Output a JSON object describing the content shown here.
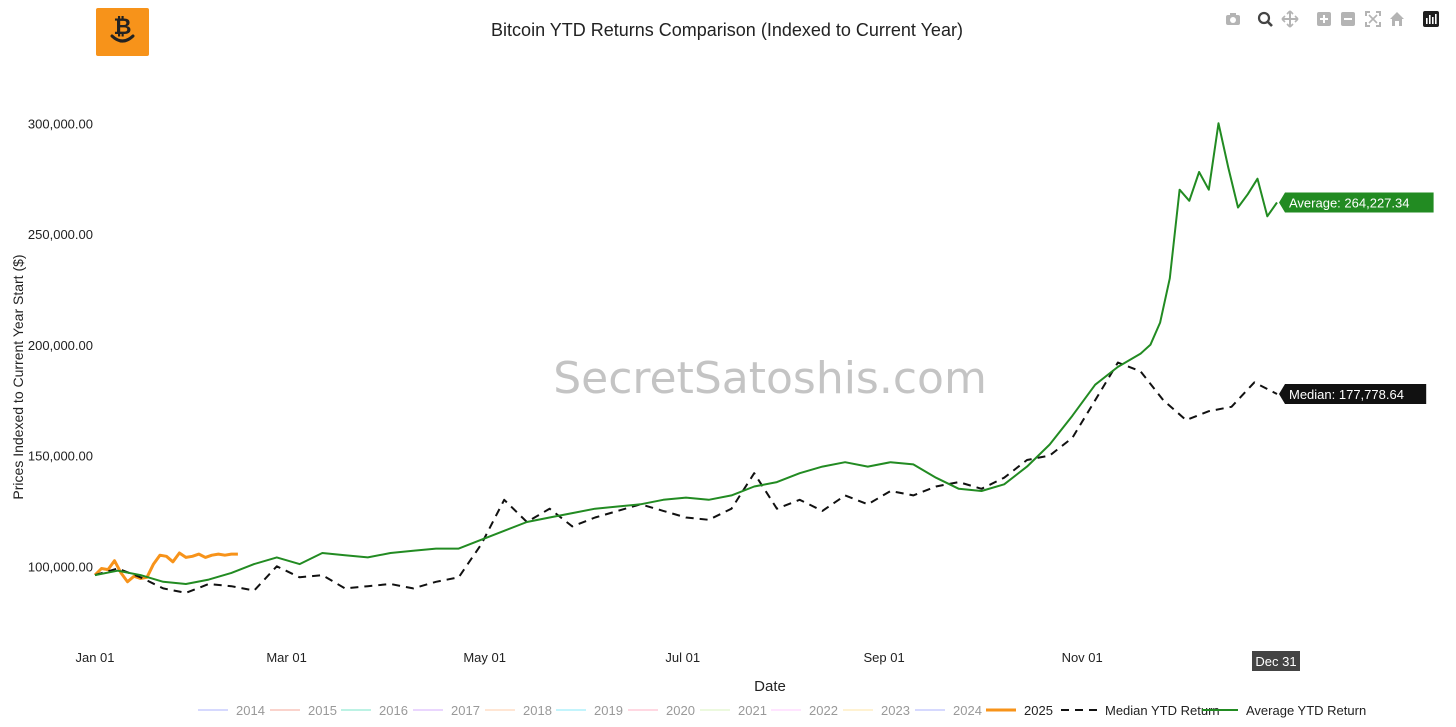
{
  "toolbar": {
    "buttons": [
      {
        "name": "camera-icon",
        "label": "Download plot as a png"
      },
      {
        "name": "zoom-icon",
        "label": "Zoom"
      },
      {
        "name": "pan-icon",
        "label": "Pan"
      },
      {
        "name": "zoom-in-icon",
        "label": "Zoom in"
      },
      {
        "name": "zoom-out-icon",
        "label": "Zoom out"
      },
      {
        "name": "autoscale-icon",
        "label": "Autoscale"
      },
      {
        "name": "home-icon",
        "label": "Reset axes"
      },
      {
        "name": "plotly-logo-icon",
        "label": "Produced with Plotly"
      }
    ]
  },
  "colors": {
    "accent_orange": "#f7931a",
    "average_green": "#228b22",
    "median_black": "#111111",
    "watermark": "#c4c4c4"
  },
  "watermark": "SecretSatoshis.com",
  "chart_data": {
    "type": "line",
    "title": "Bitcoin YTD Returns Comparison (Indexed to Current Year)",
    "xlabel": "Date",
    "ylabel": "Prices Indexed to Current Year Start ($)",
    "xlim": [
      "01-01",
      "12-31"
    ],
    "ylim": [
      78000,
      320000
    ],
    "x_ticks": [
      "Jan 01",
      "Mar 01",
      "May 01",
      "Jul 01",
      "Sep 01",
      "Nov 01"
    ],
    "y_ticks": [
      "100,000.00",
      "150,000.00",
      "200,000.00",
      "250,000.00",
      "300,000.00"
    ],
    "y_tick_values": [
      100000,
      150000,
      200000,
      250000,
      300000
    ],
    "hover_x_label": "Dec 31",
    "grid": false,
    "legend_position": "bottom",
    "legend": [
      "2014",
      "2015",
      "2016",
      "2017",
      "2018",
      "2019",
      "2020",
      "2021",
      "2022",
      "2023",
      "2024",
      "2025",
      "Median YTD Return",
      "Average YTD Return"
    ],
    "series": [
      {
        "name": "2025",
        "color": "#f7931a",
        "style": "solid",
        "x": [
          "01-01",
          "01-03",
          "01-05",
          "01-07",
          "01-09",
          "01-11",
          "01-13",
          "01-15",
          "01-17",
          "01-19",
          "01-21",
          "01-23",
          "01-25",
          "01-27",
          "01-29",
          "01-31",
          "02-02",
          "02-04",
          "02-06",
          "02-08",
          "02-10",
          "02-12",
          "02-14"
        ],
        "y": [
          96000,
          99000,
          98500,
          102500,
          97000,
          93000,
          95500,
          94500,
          95000,
          101000,
          105000,
          104500,
          102000,
          106000,
          104000,
          104500,
          105500,
          104000,
          105000,
          105500,
          105000,
          105500,
          105500
        ]
      },
      {
        "name": "Median YTD Return",
        "color": "#111111",
        "style": "dash",
        "x": [
          "01-01",
          "01-08",
          "01-15",
          "01-22",
          "01-29",
          "02-05",
          "02-12",
          "02-19",
          "02-26",
          "03-05",
          "03-12",
          "03-19",
          "03-26",
          "04-02",
          "04-09",
          "04-16",
          "04-23",
          "04-30",
          "05-07",
          "05-14",
          "05-21",
          "05-28",
          "06-04",
          "06-11",
          "06-18",
          "06-25",
          "07-02",
          "07-09",
          "07-16",
          "07-23",
          "07-30",
          "08-06",
          "08-13",
          "08-20",
          "08-27",
          "09-03",
          "09-10",
          "09-17",
          "09-24",
          "10-01",
          "10-08",
          "10-15",
          "10-22",
          "10-29",
          "11-05",
          "11-12",
          "11-19",
          "11-26",
          "12-03",
          "12-10",
          "12-17",
          "12-24",
          "12-31"
        ],
        "y": [
          96000,
          99000,
          95000,
          90000,
          88000,
          92000,
          91000,
          89000,
          100000,
          95000,
          96000,
          90000,
          91000,
          92000,
          90000,
          93000,
          95000,
          110000,
          130000,
          120000,
          126000,
          118000,
          122000,
          125000,
          128000,
          125000,
          122000,
          121000,
          126000,
          142000,
          126000,
          130000,
          125000,
          132000,
          128000,
          134000,
          132000,
          136000,
          138000,
          135000,
          140000,
          148000,
          150000,
          158000,
          175000,
          192000,
          188000,
          175000,
          166000,
          170000,
          172000,
          183000,
          177778.64
        ]
      },
      {
        "name": "Average YTD Return",
        "color": "#228b22",
        "style": "solid",
        "x": [
          "01-01",
          "01-08",
          "01-15",
          "01-22",
          "01-29",
          "02-05",
          "02-12",
          "02-19",
          "02-26",
          "03-05",
          "03-12",
          "03-19",
          "03-26",
          "04-02",
          "04-09",
          "04-16",
          "04-23",
          "04-30",
          "05-07",
          "05-14",
          "05-21",
          "05-28",
          "06-04",
          "06-11",
          "06-18",
          "06-25",
          "07-02",
          "07-09",
          "07-16",
          "07-23",
          "07-30",
          "08-06",
          "08-13",
          "08-20",
          "08-27",
          "09-03",
          "09-10",
          "09-17",
          "09-24",
          "10-01",
          "10-08",
          "10-15",
          "10-22",
          "10-29",
          "11-05",
          "11-12",
          "11-19",
          "11-22",
          "11-25",
          "11-28",
          "12-01",
          "12-04",
          "12-07",
          "12-10",
          "12-13",
          "12-16",
          "12-19",
          "12-22",
          "12-25",
          "12-28",
          "12-31"
        ],
        "y": [
          96000,
          98000,
          96000,
          93000,
          92000,
          94000,
          97000,
          101000,
          104000,
          101000,
          106000,
          105000,
          104000,
          106000,
          107000,
          108000,
          108000,
          112000,
          116000,
          120000,
          122000,
          124000,
          126000,
          127000,
          128000,
          130000,
          131000,
          130000,
          132000,
          136000,
          138000,
          142000,
          145000,
          147000,
          145000,
          147000,
          146000,
          140000,
          135000,
          134000,
          137000,
          145000,
          155000,
          168000,
          182000,
          190000,
          196000,
          200000,
          210000,
          230000,
          270000,
          265000,
          278000,
          270000,
          300000,
          280000,
          262000,
          268000,
          275000,
          258000,
          264227.34
        ]
      }
    ],
    "end_labels": [
      {
        "series": "Average YTD Return",
        "text": "Average: 264,227.34"
      },
      {
        "series": "Median YTD Return",
        "text": "Median: 177,778.64"
      }
    ]
  }
}
